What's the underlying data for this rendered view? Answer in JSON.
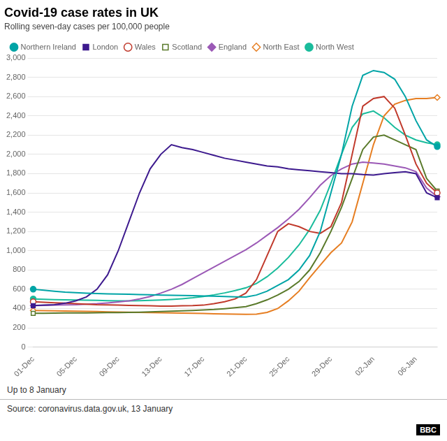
{
  "chart_data": {
    "type": "line",
    "title": "Covid-19 case rates in UK",
    "subtitle": "Rolling seven-day cases per 100,000 people",
    "footnote": "Up to 8 January",
    "source": "Source: coronavirus.data.gov.uk, 13 January",
    "annotations": [
      "BBC"
    ],
    "categories": [
      "01-Dec",
      null,
      null,
      null,
      "05-Dec",
      null,
      null,
      null,
      "09-Dec",
      null,
      null,
      null,
      "13-Dec",
      null,
      null,
      null,
      "17-Dec",
      null,
      null,
      null,
      "21-Dec",
      null,
      null,
      null,
      "25-Dec",
      null,
      null,
      null,
      "29-Dec",
      null,
      null,
      null,
      "02-Jan",
      null,
      null,
      null,
      "06-Jan",
      null,
      null
    ],
    "ylim": [
      0,
      3000
    ],
    "yticks": [
      0,
      200,
      400,
      600,
      800,
      {
        "value": 1000,
        "label": "1,000"
      },
      {
        "value": 1200,
        "label": "1,200"
      },
      {
        "value": 1400,
        "label": "1,400"
      },
      {
        "value": 1600,
        "label": "1,600"
      },
      {
        "value": 1800,
        "label": "1,800"
      },
      {
        "value": 2000,
        "label": "2,000"
      },
      {
        "value": 2200,
        "label": "2,200"
      },
      {
        "value": 2400,
        "label": "2,400"
      },
      {
        "value": 2600,
        "label": "2,600"
      },
      {
        "value": 2800,
        "label": "2,800"
      },
      {
        "value": 3000,
        "label": "3,000"
      }
    ],
    "grid": true,
    "legend": "upper left",
    "series": [
      {
        "name": "Northern Ireland",
        "color": "#00a4a6",
        "marker": "circle",
        "values": [
          600,
          590,
          580,
          570,
          565,
          560,
          555,
          552,
          550,
          548,
          545,
          542,
          540,
          538,
          535,
          533,
          530,
          528,
          525,
          522,
          520,
          540,
          580,
          640,
          700,
          800,
          950,
          1200,
          1600,
          2000,
          2500,
          2820,
          2870,
          2850,
          2780,
          2600,
          2350,
          2150,
          2080
        ]
      },
      {
        "name": "London",
        "color": "#3d1a8e",
        "marker": "square",
        "values": [
          430,
          435,
          440,
          455,
          480,
          520,
          600,
          750,
          1000,
          1300,
          1600,
          1850,
          2000,
          2100,
          2070,
          2050,
          2020,
          1990,
          1960,
          1940,
          1920,
          1900,
          1880,
          1870,
          1850,
          1840,
          1830,
          1820,
          1810,
          1800,
          1800,
          1790,
          1785,
          1800,
          1810,
          1820,
          1800,
          1600,
          1550
        ]
      },
      {
        "name": "Wales",
        "color": "#c0392b",
        "marker": "circle-open",
        "values": [
          470,
          465,
          460,
          455,
          450,
          445,
          440,
          438,
          435,
          432,
          430,
          428,
          425,
          425,
          428,
          430,
          435,
          450,
          470,
          500,
          560,
          700,
          950,
          1200,
          1280,
          1250,
          1200,
          1180,
          1250,
          1500,
          2000,
          2500,
          2580,
          2600,
          2480,
          2200,
          1900,
          1700,
          1600
        ]
      },
      {
        "name": "Scotland",
        "color": "#5a7a2b",
        "marker": "square-open",
        "values": [
          350,
          350,
          352,
          355,
          355,
          355,
          356,
          357,
          358,
          360,
          362,
          365,
          368,
          372,
          376,
          380,
          385,
          390,
          398,
          408,
          420,
          450,
          490,
          540,
          600,
          680,
          800,
          980,
          1200,
          1450,
          1750,
          2050,
          2180,
          2200,
          2150,
          2100,
          2050,
          1750,
          1620
        ]
      },
      {
        "name": "England",
        "color": "#9b59b6",
        "marker": "diamond",
        "values": [
          430,
          432,
          435,
          438,
          440,
          445,
          450,
          458,
          468,
          480,
          500,
          525,
          560,
          600,
          650,
          710,
          770,
          830,
          890,
          950,
          1010,
          1080,
          1160,
          1240,
          1330,
          1430,
          1550,
          1680,
          1780,
          1850,
          1900,
          1920,
          1910,
          1900,
          1880,
          1860,
          1820,
          1650,
          1560
        ]
      },
      {
        "name": "North East",
        "color": "#e67e22",
        "marker": "diamond-open",
        "values": [
          380,
          378,
          376,
          374,
          372,
          370,
          368,
          366,
          364,
          362,
          360,
          358,
          356,
          354,
          352,
          350,
          348,
          346,
          344,
          342,
          340,
          342,
          360,
          400,
          480,
          580,
          720,
          850,
          980,
          1080,
          1300,
          1700,
          2100,
          2400,
          2520,
          2560,
          2580,
          2580,
          2590
        ]
      },
      {
        "name": "North West",
        "color": "#1abc9c",
        "marker": "circle",
        "values": [
          500,
          495,
          492,
          490,
          488,
          486,
          484,
          482,
          480,
          480,
          482,
          484,
          488,
          494,
          502,
          512,
          525,
          542,
          562,
          586,
          615,
          660,
          730,
          820,
          930,
          1060,
          1220,
          1420,
          1700,
          2000,
          2280,
          2420,
          2450,
          2380,
          2280,
          2200,
          2150,
          2120,
          2100
        ]
      }
    ]
  }
}
